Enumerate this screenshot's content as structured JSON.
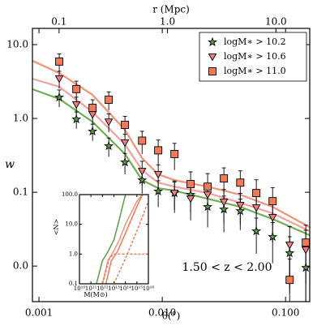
{
  "chart_data": [
    {
      "type": "scatter",
      "xlabel": "θ(°)",
      "ylabel": "w",
      "x2label": "r (Mpc)",
      "annotation": "1.50 < z < 2.00",
      "xscale": "log",
      "yscale": "log",
      "legend": "upper right",
      "x": [
        0.00146,
        0.00201,
        0.00272,
        0.00368,
        0.00498,
        0.00686,
        0.00927,
        0.01256,
        0.01698,
        0.02333,
        0.0316,
        0.0429,
        0.0579,
        0.0785,
        0.1079,
        0.1459
      ],
      "xlim": [
        0.000885,
        0.157
      ],
      "xticks": [
        {
          "value": 0.001,
          "label": "0.001"
        },
        {
          "value": 0.01,
          "label": "0.010"
        },
        {
          "value": 0.1,
          "label": "0.100"
        }
      ],
      "x2lim": [
        0.0568,
        20.5
      ],
      "x2ticks": [
        0.1,
        {
          "value": 1,
          "label": "1.0"
        },
        {
          "value": 10,
          "label": "10.0"
        }
      ],
      "ylim": [
        0.0033,
        16.6
      ],
      "yticks": [
        {
          "value": 0.01,
          "label": "0.0"
        },
        0.1,
        {
          "value": 1,
          "label": "1.0"
        },
        {
          "value": 10,
          "label": "10.0"
        }
      ],
      "series": [
        {
          "name": "logM∗ > 10.2",
          "color": "#5e9e45",
          "marker": "star",
          "values": [
            1.93,
            0.975,
            0.667,
            0.423,
            0.255,
            0.146,
            0.103,
            0.0975,
            0.0927,
            0.0634,
            0.0587,
            0.0558,
            0.0297,
            0.0249,
            0.015,
            0.0095
          ],
          "errors": [
            0.5,
            0.25,
            0.17,
            0.12,
            0.08,
            0.05,
            0.04,
            0.04,
            0.04,
            0.03,
            0.03,
            0.025,
            0.015,
            0.014,
            0.01,
            0.008
          ]
        },
        {
          "name": "logM∗ > 10.6",
          "color": "#f17b80",
          "marker": "triangle",
          "values": [
            3.45,
            1.54,
            1.13,
            0.9,
            0.47,
            0.193,
            0.175,
            0.0975,
            0.0817,
            0.0927,
            0.0738,
            0.0667,
            0.0618,
            0.0456,
            0.0193,
            0.0166
          ],
          "errors": [
            0.9,
            0.4,
            0.3,
            0.25,
            0.14,
            0.07,
            0.06,
            0.045,
            0.04,
            0.04,
            0.035,
            0.03,
            0.03,
            0.025,
            0.015,
            0.014
          ]
        },
        {
          "name": "logM∗ > 11.0",
          "color": "#f07a55",
          "marker": "square",
          "values": [
            5.9,
            2.5,
            1.39,
            1.79,
            0.82,
            0.5,
            0.37,
            0.33,
            0.129,
            0.119,
            0.154,
            0.135,
            0.0975,
            0.0757,
            0.0065,
            0.0208
          ],
          "errors": [
            1.6,
            0.7,
            0.4,
            0.5,
            0.25,
            0.17,
            0.14,
            0.13,
            0.06,
            0.06,
            0.06,
            0.06,
            0.05,
            0.04,
            0.006,
            0.015
          ]
        }
      ],
      "lines": [
        {
          "color": "#6fae55",
          "x": [
            0.000885,
            0.00146,
            0.00272,
            0.00498,
            0.00686,
            0.00927,
            0.01256,
            0.02333,
            0.0429,
            0.0785,
            0.157
          ],
          "values": [
            2.49,
            1.84,
            0.9,
            0.33,
            0.146,
            0.1135,
            0.105,
            0.0817,
            0.0634,
            0.0434,
            0.0262
          ]
        },
        {
          "color": "#f4a0a0",
          "x": [
            0.000885,
            0.00146,
            0.00272,
            0.00498,
            0.00686,
            0.00927,
            0.01256,
            0.02333,
            0.0429,
            0.0785,
            0.157
          ],
          "values": [
            3.45,
            2.69,
            1.22,
            0.445,
            0.198,
            0.135,
            0.119,
            0.0975,
            0.072,
            0.0518,
            0.0297
          ]
        },
        {
          "color": "#f0927a",
          "x": [
            0.000885,
            0.00146,
            0.00272,
            0.00498,
            0.00686,
            0.00927,
            0.01256,
            0.02333,
            0.0429,
            0.0785,
            0.157
          ],
          "values": [
            6.03,
            4.12,
            2.08,
            0.7,
            0.29,
            0.175,
            0.146,
            0.119,
            0.0927,
            0.0634,
            0.0336
          ]
        }
      ]
    },
    {
      "type": "line",
      "xlabel": "M(M⊙)",
      "ylabel": "<N>",
      "xscale": "log",
      "yscale": "log",
      "xlim": [
        10000000000.0,
        1e+16
      ],
      "xticks": [
        {
          "value": 10000000000.0,
          "label": "10¹⁰"
        },
        {
          "value": 100000000000.0,
          "label": "10¹¹"
        },
        {
          "value": 1000000000000.0,
          "label": "10¹²"
        },
        {
          "value": 10000000000000.0,
          "label": "10¹³"
        },
        {
          "value": 100000000000000.0,
          "label": "10¹⁴"
        },
        {
          "value": 1000000000000000.0,
          "label": "10¹⁵"
        },
        {
          "value": 1e+16,
          "label": "10¹⁶"
        }
      ],
      "ylim": [
        0.1,
        100
      ],
      "yticks": [
        0.1,
        {
          "value": 1,
          "label": "1.0"
        },
        {
          "value": 10,
          "label": "10.0"
        },
        {
          "value": 100,
          "label": "100.0"
        }
      ],
      "lines": [
        {
          "color": "#5e9e45",
          "dashed": false,
          "x": [
            300000000000.0,
            1000000000000.0,
            3000000000000.0,
            10000000000000.0,
            30000000000000.0,
            100000000000000.0
          ],
          "values": [
            0.1,
            0.6,
            1.2,
            3,
            15,
            100
          ]
        },
        {
          "color": "#f0927a",
          "dashed": false,
          "x": [
            1000000000000.0,
            3000000000000.0,
            10000000000000.0,
            30000000000000.0,
            100000000000000.0,
            1000000000000000.0,
            3000000000000000.0
          ],
          "values": [
            0.1,
            0.6,
            1.3,
            3,
            10,
            60,
            100
          ]
        },
        {
          "color": "#f07a55",
          "dashed": false,
          "x": [
            2000000000000.0,
            6000000000000.0,
            20000000000000.0,
            100000000000000.0,
            1000000000000000.0,
            3000000000000000.0
          ],
          "values": [
            0.1,
            0.6,
            1.2,
            5,
            40,
            100
          ]
        },
        {
          "color": "#f07a55",
          "dashed": true,
          "x": [
            1000000000000.0,
            4000000000000.0,
            10000000000000.0,
            1e+16
          ],
          "values": [
            0.1,
            0.7,
            1,
            1
          ]
        },
        {
          "color": "#f07a55",
          "dashed": true,
          "x": [
            10000000000000.0,
            100000000000000.0,
            1000000000000000.0,
            1e+16
          ],
          "values": [
            0.1,
            0.7,
            6,
            60
          ]
        }
      ]
    }
  ]
}
